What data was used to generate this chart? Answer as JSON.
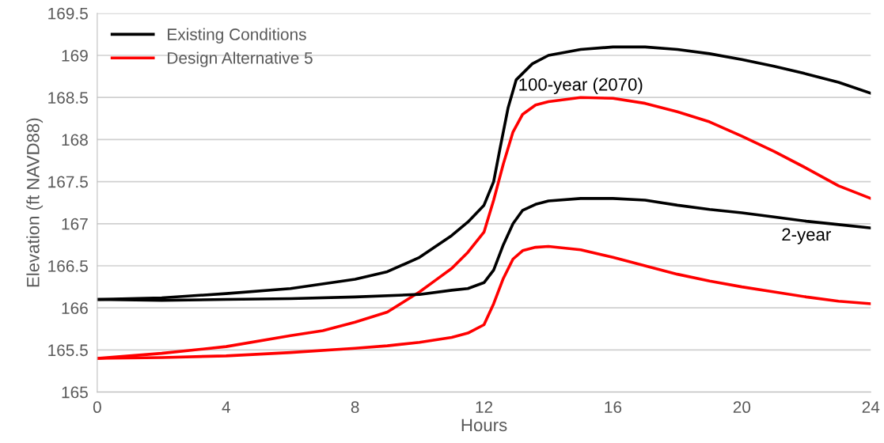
{
  "chart_data": {
    "type": "line",
    "xlabel": "Hours",
    "ylabel": "Elevation (ft NAVD88)",
    "xlim": [
      0,
      24
    ],
    "xticks": [
      0,
      4,
      8,
      12,
      16,
      20,
      24
    ],
    "ylim": [
      165,
      169.5
    ],
    "yticks": [
      165,
      165.5,
      166,
      166.5,
      167,
      167.5,
      168,
      168.5,
      169,
      169.5
    ],
    "grid": "y",
    "legend": "top left",
    "marker": "none",
    "line_style": "solid",
    "series": [
      {
        "name": "Existing Conditions",
        "color": "#000000",
        "x": [
          0,
          2,
          4,
          6,
          8,
          9,
          10,
          11,
          11.5,
          12,
          12.3,
          12.5,
          12.75,
          13,
          13.5,
          14,
          15,
          16,
          17,
          18,
          19,
          20,
          21,
          22,
          23,
          24
        ],
        "values": [
          166.1,
          166.12,
          166.17,
          166.23,
          166.34,
          166.43,
          166.6,
          166.86,
          167.02,
          167.22,
          167.5,
          167.9,
          168.38,
          168.71,
          168.9,
          169.0,
          169.07,
          169.1,
          169.1,
          169.07,
          169.02,
          168.95,
          168.87,
          168.78,
          168.68,
          168.55
        ]
      },
      {
        "name": "Design Alternative 5",
        "color": "#ff0000",
        "x": [
          0,
          2,
          4,
          6,
          7,
          8,
          9,
          10,
          10.5,
          11,
          11.5,
          12,
          12.3,
          12.6,
          12.9,
          13.2,
          13.6,
          14,
          15,
          16,
          17,
          18,
          19,
          20,
          21,
          22,
          23,
          24
        ],
        "values": [
          165.4,
          165.46,
          165.54,
          165.67,
          165.73,
          165.83,
          165.95,
          166.19,
          166.33,
          166.47,
          166.66,
          166.9,
          167.28,
          167.71,
          168.09,
          168.3,
          168.41,
          168.45,
          168.5,
          168.49,
          168.43,
          168.33,
          168.21,
          168.04,
          167.86,
          167.66,
          167.45,
          167.3
        ]
      },
      {
        "color": "#000000",
        "x": [
          0,
          2,
          4,
          6,
          8,
          10,
          11,
          11.5,
          12,
          12.3,
          12.6,
          12.9,
          13.2,
          13.6,
          14,
          15,
          16,
          17,
          18,
          19,
          20,
          21,
          22,
          23,
          24
        ],
        "values": [
          166.1,
          166.09,
          166.1,
          166.11,
          166.13,
          166.16,
          166.21,
          166.23,
          166.3,
          166.45,
          166.75,
          167.0,
          167.16,
          167.23,
          167.27,
          167.3,
          167.3,
          167.28,
          167.22,
          167.17,
          167.13,
          167.08,
          167.03,
          166.99,
          166.95
        ]
      },
      {
        "color": "#ff0000",
        "x": [
          0,
          2,
          4,
          6,
          8,
          9,
          10,
          11,
          11.5,
          12,
          12.3,
          12.6,
          12.9,
          13.2,
          13.6,
          14,
          15,
          16,
          17,
          18,
          19,
          20,
          21,
          22,
          23,
          24
        ],
        "values": [
          165.4,
          165.41,
          165.43,
          165.47,
          165.52,
          165.55,
          165.59,
          165.65,
          165.7,
          165.8,
          166.05,
          166.35,
          166.58,
          166.68,
          166.72,
          166.73,
          166.69,
          166.6,
          166.5,
          166.4,
          166.32,
          166.25,
          166.19,
          166.13,
          166.08,
          166.05
        ]
      }
    ],
    "annotations": [
      {
        "text": "100-year (2070)",
        "x": 15,
        "y": 168.5
      },
      {
        "text": "2-year",
        "x": 22,
        "y": 167.03
      }
    ]
  }
}
